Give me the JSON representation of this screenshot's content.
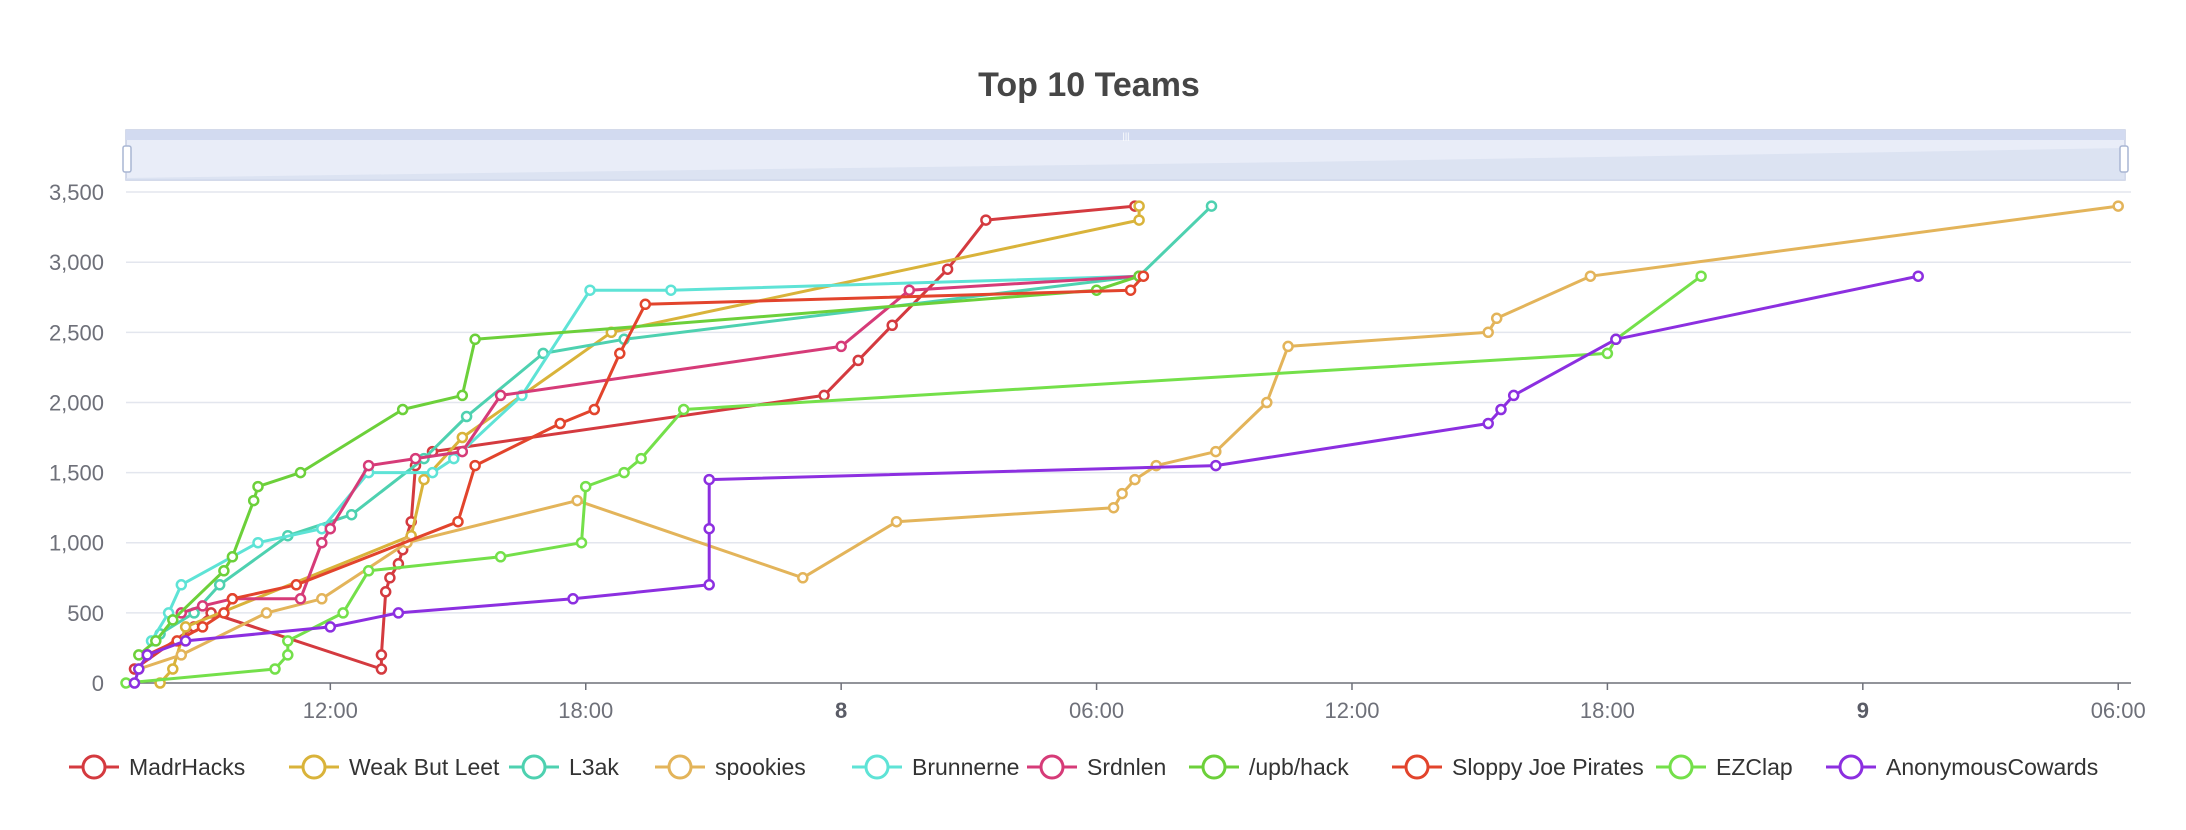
{
  "chart_data": {
    "type": "line",
    "title": "Top 10 Teams",
    "x_ticks": [
      {
        "label": "12:00",
        "t": 12,
        "bold": false
      },
      {
        "label": "18:00",
        "t": 18,
        "bold": false
      },
      {
        "label": "8",
        "t": 24,
        "bold": true
      },
      {
        "label": "06:00",
        "t": 30,
        "bold": false
      },
      {
        "label": "12:00",
        "t": 36,
        "bold": false
      },
      {
        "label": "18:00",
        "t": 42,
        "bold": false
      },
      {
        "label": "9",
        "t": 48,
        "bold": true
      },
      {
        "label": "06:00",
        "t": 54,
        "bold": false
      }
    ],
    "xlim": [
      7.2,
      54.3
    ],
    "ylim": [
      0,
      3700
    ],
    "y_ticks": [
      {
        "label": "0",
        "v": 0
      },
      {
        "label": "500",
        "v": 500
      },
      {
        "label": "1,000",
        "v": 1000
      },
      {
        "label": "1,500",
        "v": 1500
      },
      {
        "label": "2,000",
        "v": 2000
      },
      {
        "label": "2,500",
        "v": 2500
      },
      {
        "label": "3,000",
        "v": 3000
      },
      {
        "label": "3,500",
        "v": 3500
      }
    ],
    "legend_position": "bottom",
    "data_zoom": {
      "start": 0,
      "end": 100
    },
    "series": [
      {
        "name": "MadrHacks",
        "color": "#d43a3f",
        "points": [
          [
            7.4,
            100
          ],
          [
            8.8,
            400
          ],
          [
            9.2,
            500
          ],
          [
            13.2,
            100
          ],
          [
            13.2,
            200
          ],
          [
            13.3,
            650
          ],
          [
            13.4,
            750
          ],
          [
            13.6,
            850
          ],
          [
            13.7,
            950
          ],
          [
            13.9,
            1150
          ],
          [
            14.0,
            1550
          ],
          [
            14.4,
            1650
          ],
          [
            23.6,
            2050
          ],
          [
            24.4,
            2300
          ],
          [
            25.2,
            2550
          ],
          [
            26.5,
            2950
          ],
          [
            27.4,
            3300
          ],
          [
            30.9,
            3400
          ]
        ]
      },
      {
        "name": "Weak But Leet",
        "color": "#d9b33a",
        "points": [
          [
            8.0,
            0
          ],
          [
            8.3,
            100
          ],
          [
            8.6,
            400
          ],
          [
            13.9,
            1050
          ],
          [
            14.2,
            1450
          ],
          [
            15.1,
            1750
          ],
          [
            18.6,
            2500
          ],
          [
            31.0,
            3300
          ],
          [
            31.0,
            3400
          ]
        ]
      },
      {
        "name": "L3ak",
        "color": "#4ed1b0",
        "points": [
          [
            8.0,
            350
          ],
          [
            8.8,
            500
          ],
          [
            9.4,
            700
          ],
          [
            11.0,
            1050
          ],
          [
            12.5,
            1200
          ],
          [
            14.2,
            1600
          ],
          [
            15.2,
            1900
          ],
          [
            17.0,
            2350
          ],
          [
            18.9,
            2450
          ],
          [
            31.0,
            2900
          ],
          [
            32.7,
            3400
          ]
        ]
      },
      {
        "name": "spookies",
        "color": "#e3b45a",
        "points": [
          [
            7.5,
            100
          ],
          [
            8.5,
            200
          ],
          [
            10.5,
            500
          ],
          [
            11.8,
            600
          ],
          [
            13.8,
            1000
          ],
          [
            17.8,
            1300
          ],
          [
            23.1,
            750
          ],
          [
            25.3,
            1150
          ],
          [
            30.4,
            1250
          ],
          [
            30.6,
            1350
          ],
          [
            30.9,
            1450
          ],
          [
            31.4,
            1550
          ],
          [
            32.8,
            1650
          ],
          [
            34.0,
            2000
          ],
          [
            34.5,
            2400
          ],
          [
            39.2,
            2500
          ],
          [
            39.4,
            2600
          ],
          [
            41.6,
            2900
          ],
          [
            54.0,
            3400
          ]
        ]
      },
      {
        "name": "Brunnerne",
        "color": "#5ee3d6",
        "points": [
          [
            7.8,
            300
          ],
          [
            8.2,
            500
          ],
          [
            8.5,
            700
          ],
          [
            10.3,
            1000
          ],
          [
            11.8,
            1100
          ],
          [
            12.9,
            1500
          ],
          [
            14.4,
            1500
          ],
          [
            14.9,
            1600
          ],
          [
            16.5,
            2050
          ],
          [
            18.1,
            2800
          ],
          [
            20.0,
            2800
          ],
          [
            31.0,
            2900
          ]
        ]
      },
      {
        "name": "Srdnlen",
        "color": "#d63b78",
        "points": [
          [
            8.5,
            500
          ],
          [
            9.0,
            550
          ],
          [
            9.7,
            600
          ],
          [
            11.3,
            600
          ],
          [
            11.8,
            1000
          ],
          [
            12.0,
            1100
          ],
          [
            12.9,
            1550
          ],
          [
            14.0,
            1600
          ],
          [
            15.1,
            1650
          ],
          [
            16.0,
            2050
          ],
          [
            24.0,
            2400
          ],
          [
            25.6,
            2800
          ],
          [
            31.0,
            2900
          ]
        ]
      },
      {
        "name": "/upb/hack",
        "color": "#6cd03a",
        "points": [
          [
            7.5,
            200
          ],
          [
            7.9,
            300
          ],
          [
            8.3,
            450
          ],
          [
            9.5,
            800
          ],
          [
            9.7,
            900
          ],
          [
            10.2,
            1300
          ],
          [
            10.3,
            1400
          ],
          [
            11.3,
            1500
          ],
          [
            13.7,
            1950
          ],
          [
            15.1,
            2050
          ],
          [
            15.4,
            2450
          ],
          [
            30.0,
            2800
          ],
          [
            31.0,
            2900
          ]
        ]
      },
      {
        "name": "Sloppy Joe Pirates",
        "color": "#e2442c",
        "points": [
          [
            7.7,
            200
          ],
          [
            8.4,
            300
          ],
          [
            9.0,
            400
          ],
          [
            9.5,
            500
          ],
          [
            9.7,
            600
          ],
          [
            11.2,
            700
          ],
          [
            15.0,
            1150
          ],
          [
            15.4,
            1550
          ],
          [
            17.4,
            1850
          ],
          [
            18.2,
            1950
          ],
          [
            18.8,
            2350
          ],
          [
            19.4,
            2700
          ],
          [
            30.8,
            2800
          ],
          [
            31.1,
            2900
          ]
        ]
      },
      {
        "name": "EZClap",
        "color": "#74e04a",
        "points": [
          [
            7.2,
            0
          ],
          [
            10.7,
            100
          ],
          [
            11.0,
            200
          ],
          [
            11.0,
            300
          ],
          [
            12.3,
            500
          ],
          [
            12.9,
            800
          ],
          [
            16.0,
            900
          ],
          [
            17.9,
            1000
          ],
          [
            18.0,
            1400
          ],
          [
            18.9,
            1500
          ],
          [
            19.3,
            1600
          ],
          [
            20.3,
            1950
          ],
          [
            42.0,
            2350
          ],
          [
            42.2,
            2450
          ],
          [
            44.2,
            2900
          ]
        ]
      },
      {
        "name": "AnonymousCowards",
        "color": "#8c2fe0",
        "points": [
          [
            7.4,
            0
          ],
          [
            7.5,
            100
          ],
          [
            7.7,
            200
          ],
          [
            8.6,
            300
          ],
          [
            12.0,
            400
          ],
          [
            13.6,
            500
          ],
          [
            17.7,
            600
          ],
          [
            20.9,
            700
          ],
          [
            20.9,
            1100
          ],
          [
            20.9,
            1450
          ],
          [
            32.8,
            1550
          ],
          [
            39.2,
            1850
          ],
          [
            39.5,
            1950
          ],
          [
            39.8,
            2050
          ],
          [
            42.2,
            2450
          ],
          [
            49.3,
            2900
          ]
        ]
      }
    ]
  }
}
